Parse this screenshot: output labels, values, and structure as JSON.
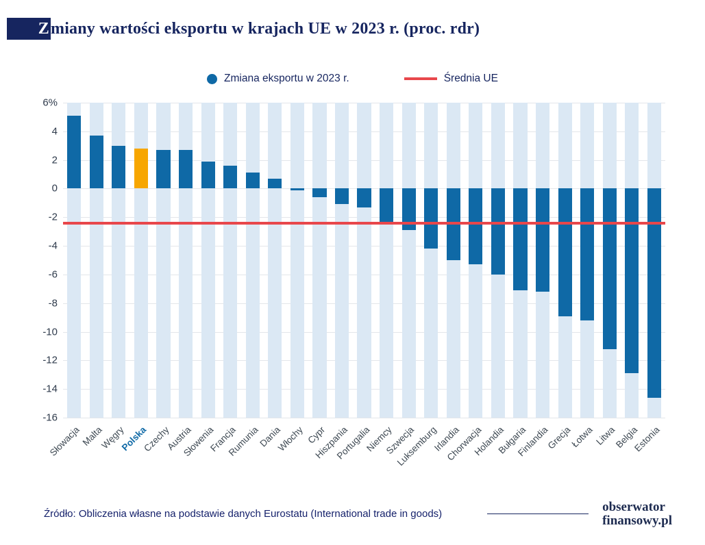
{
  "header": {
    "title_initial": "Z",
    "title_rest": "miany wartości eksportu w krajach UE w 2023 r. (proc. rdr)"
  },
  "legend": {
    "series_label": "Zmiana eksportu w 2023 r.",
    "average_label": "Średnia UE"
  },
  "colors": {
    "bar": "#0f69a6",
    "highlight_bar": "#f7a600",
    "average_line": "#e8474b",
    "stripe": "#dbe8f4",
    "navy": "#16255f"
  },
  "chart_data": {
    "type": "bar",
    "title": "Zmiany wartości eksportu w krajach UE w 2023 r. (proc. rdr)",
    "categories": [
      "Słowacja",
      "Malta",
      "Węgry",
      "Polska",
      "Czechy",
      "Austria",
      "Słowenia",
      "Francja",
      "Rumunia",
      "Dania",
      "Włochy",
      "Cypr",
      "Hiszpania",
      "Portugalia",
      "Niemcy",
      "Szwecja",
      "Luksemburg",
      "Irlandia",
      "Chorwacja",
      "Holandia",
      "Bułgaria",
      "Finlandia",
      "Grecja",
      "Łotwa",
      "Litwa",
      "Belgia",
      "Estonia"
    ],
    "values": [
      5.1,
      3.7,
      3.0,
      2.8,
      2.7,
      2.7,
      1.9,
      1.6,
      1.1,
      0.7,
      -0.1,
      -0.6,
      -1.1,
      -1.3,
      -2.4,
      -2.9,
      -4.2,
      -5.0,
      -5.3,
      -6.0,
      -7.1,
      -7.2,
      -8.9,
      -9.2,
      -11.2,
      -12.9,
      -14.6
    ],
    "highlight_category": "Polska",
    "eu_average": -2.4,
    "xlabel": "",
    "ylabel": "",
    "ylim": [
      -16,
      6
    ],
    "grid": true,
    "legend_position": "top",
    "y_ticks": [
      {
        "label": "6%",
        "value": 6
      },
      {
        "label": "4",
        "value": 4
      },
      {
        "label": "2",
        "value": 2
      },
      {
        "label": "0",
        "value": 0
      },
      {
        "label": "-2",
        "value": -2
      },
      {
        "label": "-4",
        "value": -4
      },
      {
        "label": "-6",
        "value": -6
      },
      {
        "label": "-8",
        "value": -8
      },
      {
        "label": "-10",
        "value": -10
      },
      {
        "label": "-12",
        "value": -12
      },
      {
        "label": "-14",
        "value": -14
      },
      {
        "label": "-16",
        "value": -16
      }
    ]
  },
  "footer": {
    "source": "Źródło: Obliczenia własne na podstawie danych Eurostatu (International trade in goods)",
    "logo_line1": "obserwator",
    "logo_line2": "finansowy.pl"
  }
}
